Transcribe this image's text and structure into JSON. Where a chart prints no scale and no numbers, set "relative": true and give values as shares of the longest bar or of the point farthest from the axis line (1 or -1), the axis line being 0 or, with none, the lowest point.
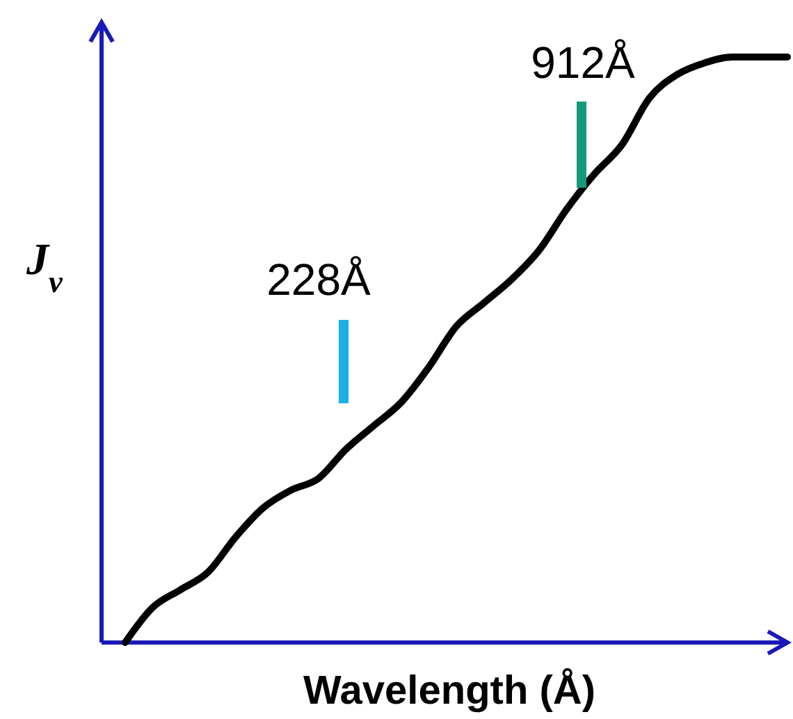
{
  "chart_data": {
    "type": "line",
    "relative": true,
    "xlabel": "Wavelength (Å)",
    "ylabel": "J$_{ν}$",
    "annotations": [
      "228Å",
      "912Å"
    ],
    "categories": [
      null,
      null,
      null,
      null,
      null,
      null,
      null,
      null,
      null,
      null,
      null,
      null,
      null,
      null,
      null,
      null,
      null,
      null,
      null,
      null,
      null,
      null,
      null,
      null,
      null
    ],
    "series": [
      {
        "color": "#000000",
        "values": [
          0.0,
          0.06,
          0.09,
          0.12,
          0.18,
          0.23,
          0.26,
          0.28,
          0.33,
          0.37,
          0.41,
          0.47,
          0.54,
          0.58,
          0.62,
          0.67,
          0.74,
          0.8,
          0.85,
          0.93,
          0.97,
          0.99,
          1,
          1,
          1
        ]
      }
    ],
    "grid": false,
    "marker": "none",
    "line_style": "solid"
  }
}
